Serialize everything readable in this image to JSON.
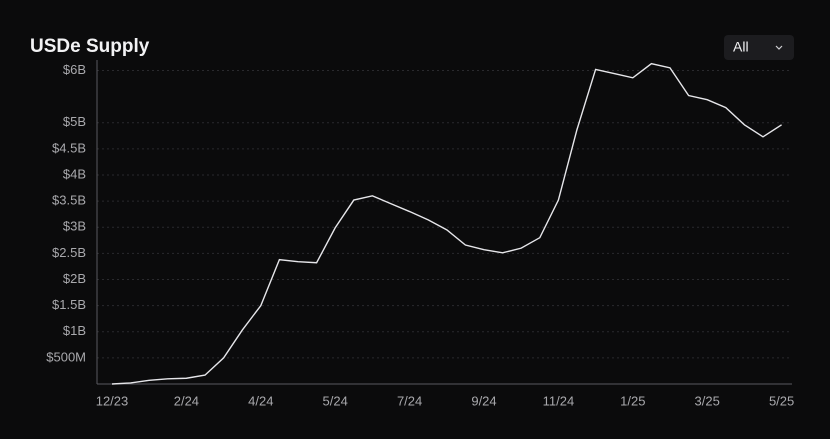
{
  "chart_data": {
    "type": "line",
    "title": "USDe Supply",
    "filter": "All",
    "categories": [
      "12/23",
      null,
      null,
      null,
      "2/24",
      null,
      null,
      null,
      "4/24",
      null,
      null,
      null,
      "5/24",
      null,
      null,
      null,
      "7/24",
      null,
      null,
      null,
      "9/24",
      null,
      null,
      null,
      "11/24",
      null,
      null,
      null,
      "1/25",
      null,
      null,
      null,
      "3/25",
      null,
      null,
      null,
      "5/25"
    ],
    "series": [
      {
        "name": "USDe Supply",
        "color": "#e6e6ea",
        "values": [
          0,
          0.02,
          0.07,
          0.1,
          0.11,
          0.17,
          0.5,
          1.03,
          1.5,
          2.38,
          2.34,
          2.32,
          2.99,
          3.52,
          3.6,
          3.45,
          3.3,
          3.14,
          2.95,
          2.66,
          2.57,
          2.51,
          2.6,
          2.8,
          3.52,
          4.87,
          6.02,
          5.94,
          5.86,
          6.13,
          6.05,
          5.52,
          5.44,
          5.29,
          4.96,
          4.73,
          4.96
        ]
      }
    ],
    "ylim": [
      0,
      6.2
    ],
    "yticks": [
      {
        "value": 0.5,
        "label": "$500M"
      },
      {
        "value": 1,
        "label": "$1B"
      },
      {
        "value": 1.5,
        "label": "$1.5B"
      },
      {
        "value": 2,
        "label": "$2B"
      },
      {
        "value": 2.5,
        "label": "$2.5B"
      },
      {
        "value": 3,
        "label": "$3B"
      },
      {
        "value": 3.5,
        "label": "$3.5B"
      },
      {
        "value": 4,
        "label": "$4B"
      },
      {
        "value": 4.5,
        "label": "$4.5B"
      },
      {
        "value": 5,
        "label": "$5B"
      },
      {
        "value": 6,
        "label": "$6B"
      }
    ],
    "grid": true
  }
}
